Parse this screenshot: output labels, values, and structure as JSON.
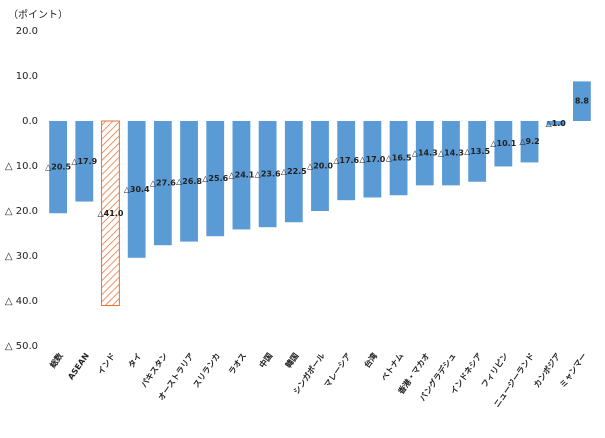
{
  "chart_data": {
    "type": "bar",
    "y_axis_label": "（ポイント）",
    "categories": [
      "総数",
      "ASEAN",
      "インド",
      "タイ",
      "パキスタン",
      "オーストラリア",
      "スリランカ",
      "ラオス",
      "中国",
      "韓国",
      "シンガポール",
      "マレーシア",
      "台湾",
      "ベトナム",
      "香港・マカオ",
      "バングラデシュ",
      "インドネシア",
      "フィリピン",
      "ニュージーランド",
      "カンボジア",
      "ミャンマー"
    ],
    "values": [
      -20.5,
      -17.9,
      -41.0,
      -30.4,
      -27.6,
      -26.8,
      -25.6,
      -24.1,
      -23.6,
      -22.5,
      -20.0,
      -17.6,
      -17.0,
      -16.5,
      -14.3,
      -14.3,
      -13.5,
      -10.1,
      -9.2,
      -1.0,
      8.8
    ],
    "value_labels": [
      "△20.5",
      "△17.9",
      "△41.0",
      "△30.4",
      "△27.6",
      "△26.8",
      "△25.6",
      "△24.1",
      "△23.6",
      "△22.5",
      "△20.0",
      "△17.6",
      "△17.0",
      "△16.5",
      "△14.3",
      "△14.3",
      "△13.5",
      "△10.1",
      "△9.2",
      "△1.0",
      "8.8"
    ],
    "color": "#5b9bd5",
    "highlight": {
      "index": 2,
      "color": "#e97132",
      "pattern": "hatch"
    },
    "ylim": [
      -50,
      20
    ],
    "yticks": [
      {
        "value": 20,
        "label": "20.0"
      },
      {
        "value": 10,
        "label": "10.0"
      },
      {
        "value": 0,
        "label": "0.0"
      },
      {
        "value": -10,
        "label": "△ 10.0"
      },
      {
        "value": -20,
        "label": "△ 20.0"
      },
      {
        "value": -30,
        "label": "△ 30.0"
      },
      {
        "value": -40,
        "label": "△ 40.0"
      },
      {
        "value": -50,
        "label": "△ 50.0"
      }
    ],
    "grid": false
  }
}
